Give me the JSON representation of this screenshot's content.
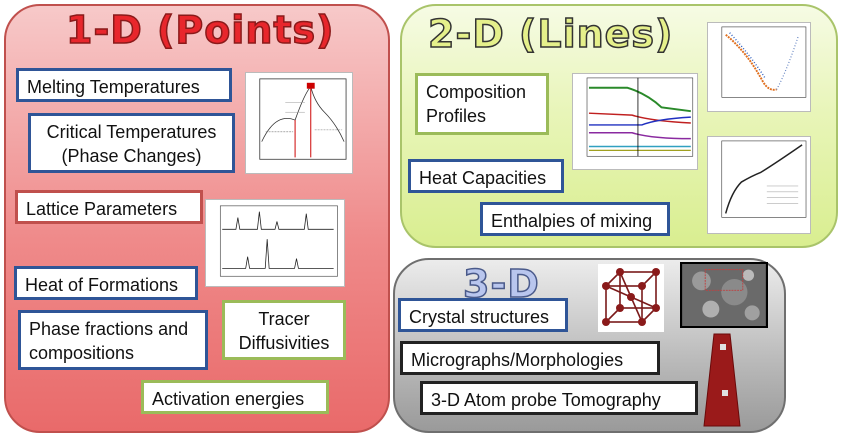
{
  "panels": {
    "one_d": {
      "title": "1-D (Points)",
      "boxes": {
        "melting": "Melting Temperatures",
        "critical_1": "Critical Temperatures",
        "critical_2": "(Phase Changes)",
        "lattice": "Lattice Parameters",
        "heat_formation": "Heat of Formations",
        "phase_1": "Phase fractions and",
        "phase_2": "compositions",
        "tracer_1": "Tracer",
        "tracer_2": "Diffusivities",
        "activation": "Activation energies"
      }
    },
    "two_d": {
      "title": "2-D (Lines)",
      "boxes": {
        "composition_1": "Composition",
        "composition_2": "Profiles",
        "heat_cap": "Heat Capacities",
        "enthalpies": "Enthalpies of mixing"
      }
    },
    "three_d": {
      "title": "3-D",
      "boxes": {
        "crystal": "Crystal structures",
        "micrographs": "Micrographs/Morphologies",
        "atom_probe": "3-D Atom probe Tomography"
      }
    }
  },
  "colors": {
    "one_d_panel": "#ef8a8a",
    "two_d_panel": "#e8f5b8",
    "three_d_panel": "#b9b9b9",
    "border_blue": "#2f5597",
    "border_red": "#c0504d",
    "border_green": "#9bbb59"
  }
}
